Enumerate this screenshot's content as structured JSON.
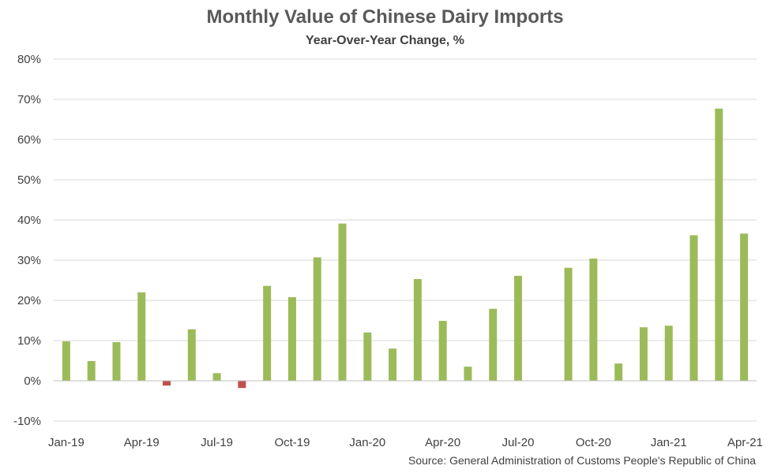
{
  "chart_data": {
    "type": "bar",
    "title": "Monthly Value of Chinese Dairy Imports",
    "subtitle": "Year-Over-Year Change, %",
    "source": "Source: General Administration of Customs People's Republic of China",
    "categories": [
      "Jan-19",
      "Feb-19",
      "Mar-19",
      "Apr-19",
      "May-19",
      "Jun-19",
      "Jul-19",
      "Aug-19",
      "Sep-19",
      "Oct-19",
      "Nov-19",
      "Dec-19",
      "Jan-20",
      "Feb-20",
      "Mar-20",
      "Apr-20",
      "May-20",
      "Jun-20",
      "Jul-20",
      "Aug-20",
      "Sep-20",
      "Oct-20",
      "Nov-20",
      "Dec-20",
      "Jan-21",
      "Feb-21",
      "Mar-21",
      "Apr-21"
    ],
    "x_tick_labels": [
      "Jan-19",
      "Apr-19",
      "Jul-19",
      "Oct-19",
      "Jan-20",
      "Apr-20",
      "Jul-20",
      "Oct-20",
      "Jan-21",
      "Apr-21"
    ],
    "values": [
      9.8,
      4.9,
      9.6,
      22.0,
      -1.2,
      12.8,
      1.9,
      -1.8,
      23.6,
      20.8,
      30.7,
      39.1,
      12.0,
      8.0,
      25.3,
      14.9,
      3.5,
      17.9,
      26.1,
      null,
      28.1,
      30.4,
      4.3,
      13.3,
      13.7,
      36.2,
      67.7,
      36.6
    ],
    "y_tick_labels": [
      "-10%",
      "0%",
      "10%",
      "20%",
      "30%",
      "40%",
      "50%",
      "60%",
      "70%",
      "80%"
    ],
    "ylim": [
      -10,
      80
    ],
    "xlabel": "",
    "ylabel": "",
    "grid": true,
    "colors": {
      "positive": "#9BBB59",
      "negative": "#C0504D",
      "grid": "#D9D9D9",
      "axis": "#BFBFBF"
    }
  }
}
